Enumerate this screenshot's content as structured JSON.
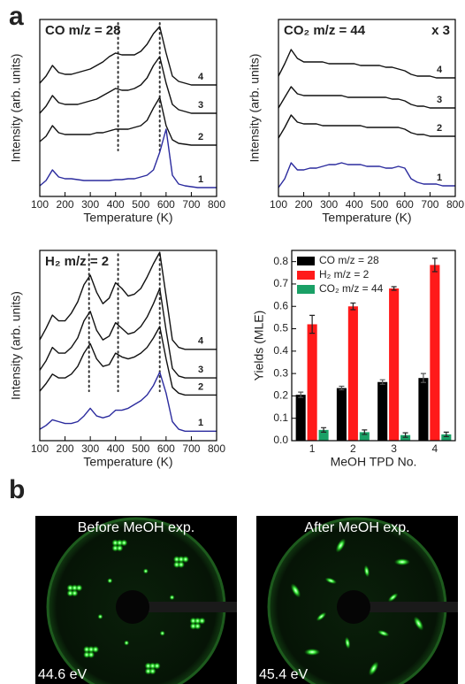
{
  "panel_labels": [
    "a",
    "b"
  ],
  "leed_images": [
    {
      "title": "Before MeOH exp.",
      "energy": "44.6 eV"
    },
    {
      "title": "After MeOH exp.",
      "energy": "45.4 eV"
    }
  ],
  "chart_data": [
    {
      "type": "line",
      "title": "CO m/z = 28",
      "xlabel": "Temperature (K)",
      "ylabel": "Intensity (arb. units)",
      "x": [
        100,
        125,
        150,
        175,
        200,
        225,
        250,
        275,
        300,
        325,
        350,
        375,
        400,
        425,
        450,
        475,
        500,
        525,
        550,
        575,
        600,
        625,
        650,
        675,
        700,
        725,
        750,
        775,
        800
      ],
      "xlim": [
        100,
        800
      ],
      "xticks": [
        100,
        200,
        300,
        400,
        500,
        600,
        700,
        800
      ],
      "ylim": [
        0,
        10
      ],
      "vlines": [
        410,
        575
      ],
      "series": [
        {
          "name": "1",
          "color": "#2b2b9e",
          "values": [
            0.6,
            0.9,
            1.5,
            1.1,
            1.0,
            1.0,
            0.95,
            0.9,
            0.9,
            0.9,
            0.9,
            0.9,
            0.95,
            0.95,
            1.0,
            1.0,
            1.1,
            1.2,
            1.5,
            2.5,
            3.8,
            1.2,
            0.7,
            0.6,
            0.55,
            0.5,
            0.5,
            0.5,
            0.5
          ]
        },
        {
          "name": "2",
          "color": "#111111",
          "values": [
            3.1,
            3.4,
            4.0,
            3.6,
            3.5,
            3.5,
            3.5,
            3.5,
            3.5,
            3.6,
            3.6,
            3.7,
            3.8,
            3.8,
            3.8,
            3.9,
            4.0,
            4.3,
            5.0,
            5.6,
            4.0,
            3.2,
            3.0,
            2.95,
            2.9,
            2.9,
            2.9,
            2.9,
            2.9
          ]
        },
        {
          "name": "3",
          "color": "#111111",
          "values": [
            4.7,
            5.1,
            5.7,
            5.3,
            5.2,
            5.2,
            5.2,
            5.3,
            5.4,
            5.5,
            5.7,
            5.9,
            6.1,
            6.0,
            6.0,
            6.1,
            6.3,
            6.7,
            7.4,
            7.9,
            6.4,
            5.2,
            4.9,
            4.8,
            4.7,
            4.7,
            4.7,
            4.7,
            4.7
          ]
        },
        {
          "name": "4",
          "color": "#111111",
          "values": [
            6.4,
            6.8,
            7.4,
            7.0,
            6.9,
            6.9,
            7.0,
            7.1,
            7.2,
            7.4,
            7.6,
            7.9,
            8.1,
            8.0,
            8.0,
            8.0,
            8.2,
            8.6,
            9.2,
            9.6,
            8.1,
            6.8,
            6.5,
            6.4,
            6.3,
            6.3,
            6.3,
            6.3,
            6.3
          ]
        }
      ]
    },
    {
      "type": "line",
      "title": "CO₂ m/z = 44",
      "annotation": "x 3",
      "xlabel": "Temperature (K)",
      "ylabel": "Intensity (arb. units)",
      "x": [
        100,
        125,
        150,
        175,
        200,
        225,
        250,
        275,
        300,
        325,
        350,
        375,
        400,
        425,
        450,
        475,
        500,
        525,
        550,
        575,
        600,
        625,
        650,
        675,
        700,
        725,
        750,
        775,
        800
      ],
      "xlim": [
        100,
        800
      ],
      "xticks": [
        100,
        200,
        300,
        400,
        500,
        600,
        700,
        800
      ],
      "ylim": [
        0,
        10
      ],
      "series": [
        {
          "name": "1",
          "color": "#2b2b9e",
          "values": [
            0.5,
            1.0,
            1.9,
            1.5,
            1.5,
            1.6,
            1.6,
            1.7,
            1.8,
            1.8,
            1.9,
            1.8,
            1.8,
            1.8,
            1.7,
            1.7,
            1.7,
            1.6,
            1.6,
            1.7,
            1.6,
            1.0,
            0.8,
            0.7,
            0.7,
            0.7,
            0.6,
            0.6,
            0.6
          ]
        },
        {
          "name": "2",
          "color": "#111111",
          "values": [
            3.3,
            3.9,
            4.6,
            4.2,
            4.1,
            4.1,
            4.1,
            4.0,
            4.0,
            4.0,
            4.0,
            4.0,
            4.0,
            4.0,
            3.9,
            3.9,
            3.9,
            3.9,
            3.9,
            3.9,
            3.8,
            3.6,
            3.5,
            3.5,
            3.4,
            3.4,
            3.4,
            3.4,
            3.4
          ]
        },
        {
          "name": "3",
          "color": "#111111",
          "values": [
            5.0,
            5.6,
            6.2,
            5.8,
            5.7,
            5.7,
            5.7,
            5.7,
            5.7,
            5.7,
            5.7,
            5.6,
            5.6,
            5.6,
            5.6,
            5.6,
            5.6,
            5.6,
            5.5,
            5.5,
            5.4,
            5.2,
            5.1,
            5.1,
            5.0,
            5.0,
            5.0,
            5.0,
            5.0
          ]
        },
        {
          "name": "4",
          "color": "#111111",
          "values": [
            6.8,
            7.5,
            8.3,
            7.8,
            7.6,
            7.6,
            7.6,
            7.6,
            7.5,
            7.5,
            7.5,
            7.5,
            7.5,
            7.4,
            7.4,
            7.4,
            7.4,
            7.3,
            7.3,
            7.2,
            7.1,
            6.9,
            6.8,
            6.8,
            6.8,
            6.7,
            6.7,
            6.7,
            6.7
          ]
        }
      ]
    },
    {
      "type": "line",
      "title": "H₂ m/z = 2",
      "xlabel": "Temperature (K)",
      "ylabel": "Intensity (arb. units)",
      "x": [
        100,
        125,
        150,
        175,
        200,
        225,
        250,
        275,
        300,
        325,
        350,
        375,
        400,
        425,
        450,
        475,
        500,
        525,
        550,
        575,
        600,
        625,
        650,
        675,
        700,
        725,
        750,
        775,
        800
      ],
      "xlim": [
        100,
        800
      ],
      "xticks": [
        100,
        200,
        300,
        400,
        500,
        600,
        700,
        800
      ],
      "ylim": [
        0,
        10
      ],
      "vlines": [
        295,
        410,
        575
      ],
      "series": [
        {
          "name": "1",
          "color": "#2b2b9e",
          "values": [
            0.6,
            0.8,
            1.1,
            1.0,
            0.9,
            0.9,
            1.0,
            1.3,
            1.7,
            1.3,
            1.2,
            1.3,
            1.6,
            1.6,
            1.7,
            1.9,
            2.1,
            2.4,
            2.9,
            3.6,
            2.5,
            1.0,
            0.6,
            0.5,
            0.5,
            0.5,
            0.5,
            0.5,
            0.5
          ]
        },
        {
          "name": "2",
          "color": "#111111",
          "values": [
            2.6,
            3.0,
            3.5,
            3.3,
            3.3,
            3.5,
            3.9,
            4.6,
            5.1,
            4.3,
            3.9,
            4.0,
            4.6,
            4.4,
            4.3,
            4.4,
            4.6,
            4.9,
            5.4,
            6.0,
            4.3,
            2.8,
            2.5,
            2.4,
            2.4,
            2.4,
            2.4,
            2.4,
            2.4
          ]
        },
        {
          "name": "3",
          "color": "#111111",
          "values": [
            3.7,
            4.2,
            4.9,
            4.6,
            4.6,
            4.9,
            5.4,
            6.3,
            6.8,
            5.8,
            5.3,
            5.5,
            6.2,
            5.9,
            5.6,
            5.7,
            6.0,
            6.5,
            7.2,
            8.0,
            5.8,
            3.8,
            3.4,
            3.3,
            3.3,
            3.3,
            3.3,
            3.3,
            3.3
          ]
        },
        {
          "name": "4",
          "color": "#111111",
          "values": [
            5.3,
            5.9,
            6.6,
            6.3,
            6.3,
            6.7,
            7.3,
            8.2,
            8.7,
            7.8,
            7.2,
            7.5,
            8.3,
            8.0,
            7.6,
            7.7,
            8.0,
            8.6,
            9.3,
            9.9,
            7.6,
            5.3,
            4.9,
            4.8,
            4.8,
            4.8,
            4.8,
            4.8,
            4.8
          ]
        }
      ]
    },
    {
      "type": "bar",
      "xlabel": "MeOH TPD No.",
      "ylabel": "Yields (MLE)",
      "categories": [
        "1",
        "2",
        "3",
        "4"
      ],
      "ylim": [
        0,
        0.85
      ],
      "yticks": [
        {
          "value": 0,
          "label": "0.0"
        },
        0.1,
        0.2,
        0.3,
        0.4,
        0.5,
        0.6,
        0.7,
        0.8
      ],
      "legend": "upper-left",
      "series": [
        {
          "name": "CO m/z = 28",
          "color": "#000000",
          "values": [
            0.205,
            0.235,
            0.262,
            0.28
          ],
          "errors": [
            0.012,
            0.008,
            0.01,
            0.02
          ]
        },
        {
          "name": "H₂ m/z = 2",
          "color": "#ff1a1a",
          "values": [
            0.52,
            0.6,
            0.68,
            0.785
          ],
          "errors": [
            0.04,
            0.015,
            0.008,
            0.03
          ]
        },
        {
          "name": "CO₂ m/z = 44",
          "color": "#1aa066",
          "values": [
            0.048,
            0.038,
            0.025,
            0.028
          ],
          "errors": [
            0.01,
            0.01,
            0.01,
            0.01
          ]
        }
      ]
    }
  ]
}
